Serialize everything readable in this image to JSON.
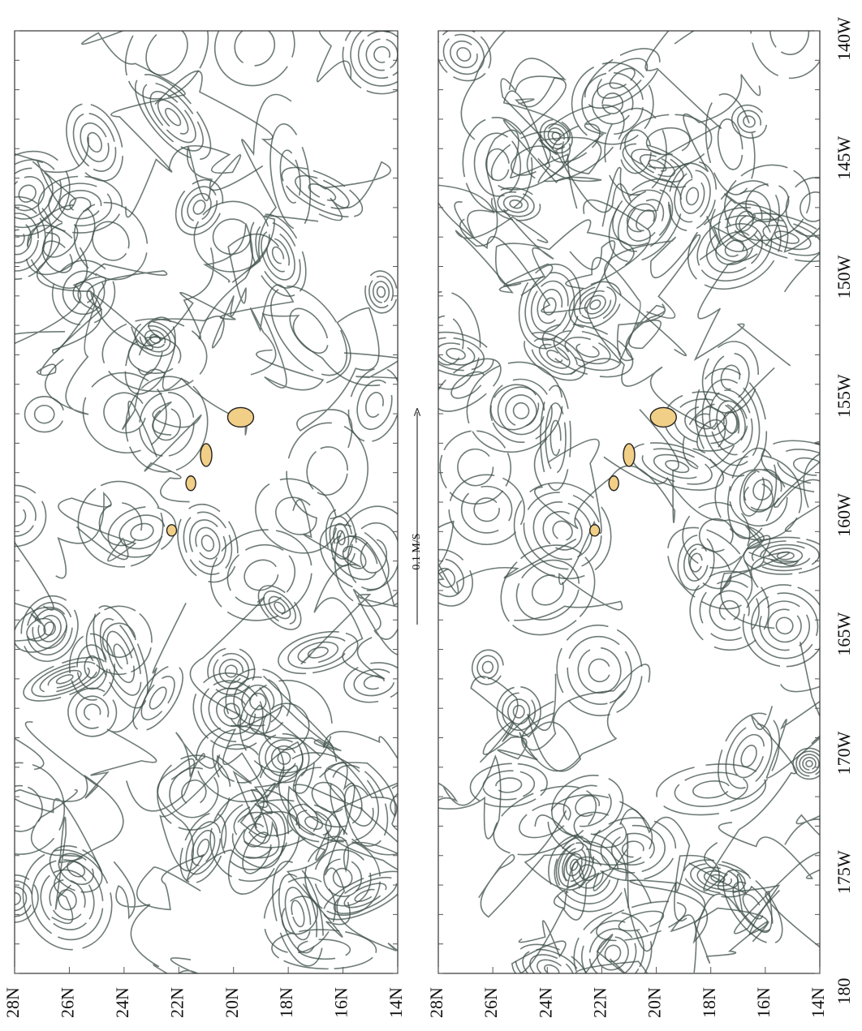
{
  "panels": [
    {
      "lat_labels": [
        "28N",
        "26N",
        "24N",
        "22N",
        "20N",
        "18N",
        "16N",
        "14N"
      ]
    },
    {
      "lat_labels": [
        "28N",
        "26N",
        "24N",
        "22N",
        "20N",
        "18N",
        "16N",
        "14N"
      ]
    }
  ],
  "lon_labels": [
    "140W",
    "145W",
    "150W",
    "155W",
    "160W",
    "165W",
    "170W",
    "175W",
    "180"
  ],
  "scale_label": "0.1 M/S"
}
